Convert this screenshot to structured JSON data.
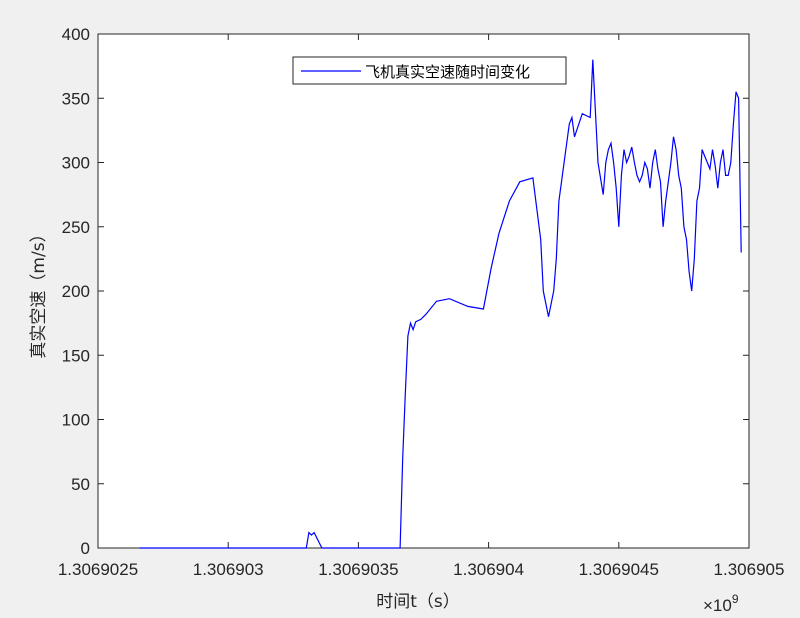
{
  "chart_data": {
    "type": "line",
    "title": "",
    "xlabel": "时间t（s）",
    "ylabel": "真实空速（m/s）",
    "x_exponent_label": "×10",
    "x_exponent_power": "9",
    "xlim": [
      1.3069025,
      1.306905
    ],
    "ylim": [
      0,
      400
    ],
    "grid": false,
    "legend_location": "top-center",
    "x_ticks": [
      1.3069025,
      1.306903,
      1.3069035,
      1.306904,
      1.3069045,
      1.306905
    ],
    "x_tick_labels": [
      "1.3069025",
      "1.306903",
      "1.3069035",
      "1.306904",
      "1.3069045",
      "1.306905"
    ],
    "y_ticks": [
      0,
      50,
      100,
      150,
      200,
      250,
      300,
      350,
      400
    ],
    "y_tick_labels": [
      "0",
      "50",
      "100",
      "150",
      "200",
      "250",
      "300",
      "350",
      "400"
    ],
    "series": [
      {
        "name": "飞机真实空速随时间变化",
        "color": "#0000ff",
        "x": [
          1.30690266,
          1.3069033,
          1.30690331,
          1.30690332,
          1.30690333,
          1.30690334,
          1.30690335,
          1.30690336,
          1.30690337,
          1.30690338,
          1.30690339,
          1.3069034,
          1.30690341,
          1.30690366,
          1.30690367,
          1.30690368,
          1.30690369,
          1.3069037,
          1.30690371,
          1.30690372,
          1.30690374,
          1.30690376,
          1.3069038,
          1.30690385,
          1.30690392,
          1.30690398,
          1.30690401,
          1.30690404,
          1.30690408,
          1.30690412,
          1.30690417,
          1.3069042,
          1.30690421,
          1.30690423,
          1.30690425,
          1.30690426,
          1.30690427,
          1.30690429,
          1.30690431,
          1.30690432,
          1.30690433,
          1.30690436,
          1.30690439,
          1.3069044,
          1.30690442,
          1.30690444,
          1.30690445,
          1.30690446,
          1.30690447,
          1.30690448,
          1.30690449,
          1.3069045,
          1.30690451,
          1.30690452,
          1.30690453,
          1.30690454,
          1.30690455,
          1.30690456,
          1.30690457,
          1.30690458,
          1.30690459,
          1.3069046,
          1.30690461,
          1.30690462,
          1.30690463,
          1.30690464,
          1.30690465,
          1.30690466,
          1.30690467,
          1.30690468,
          1.30690469,
          1.3069047,
          1.30690471,
          1.30690472,
          1.30690473,
          1.30690474,
          1.30690475,
          1.30690476,
          1.30690477,
          1.30690478,
          1.30690479,
          1.3069048,
          1.30690481,
          1.30690482,
          1.30690483,
          1.30690484,
          1.30690485,
          1.30690486,
          1.30690487,
          1.30690488,
          1.30690489,
          1.3069049,
          1.30690491,
          1.30690492,
          1.30690493,
          1.30690494,
          1.30690495,
          1.30690496,
          1.30690497
        ],
        "y": [
          0,
          0,
          12,
          10,
          12,
          8,
          4,
          0,
          0,
          0,
          0,
          0,
          0,
          0,
          70,
          120,
          165,
          175,
          170,
          176,
          178,
          182,
          192,
          194,
          188,
          186,
          218,
          245,
          270,
          285,
          288,
          240,
          200,
          180,
          200,
          225,
          270,
          300,
          330,
          335,
          320,
          338,
          335,
          380,
          300,
          275,
          300,
          310,
          315,
          300,
          280,
          250,
          290,
          310,
          300,
          305,
          312,
          300,
          290,
          285,
          290,
          300,
          295,
          280,
          300,
          310,
          295,
          285,
          250,
          270,
          285,
          300,
          320,
          310,
          290,
          280,
          250,
          240,
          215,
          200,
          225,
          270,
          280,
          310,
          305,
          300,
          295,
          310,
          298,
          280,
          300,
          310,
          290,
          290,
          300,
          330,
          355,
          350,
          230
        ]
      }
    ]
  }
}
